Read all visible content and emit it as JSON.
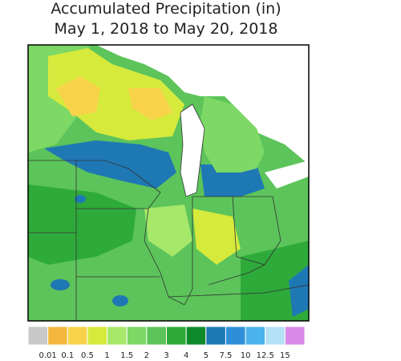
{
  "title": [
    "Accumulated Precipitation (in)",
    "May 1, 2018 to May 20, 2018"
  ],
  "legend": {
    "colors": [
      "#c8c8c8",
      "#f4b73c",
      "#f8d34a",
      "#d6ea3c",
      "#a6e86a",
      "#7dd865",
      "#5cc45a",
      "#2eaa3a",
      "#0e8a2a",
      "#1e78b4",
      "#2e8fd8",
      "#4cb4ec",
      "#b4e0f6",
      "#d88ae8"
    ],
    "labels": [
      "0.01",
      "0.1",
      "0.5",
      "1",
      "1.5",
      "2",
      "3",
      "4",
      "5",
      "7.5",
      "10",
      "12.5",
      "15"
    ]
  }
}
